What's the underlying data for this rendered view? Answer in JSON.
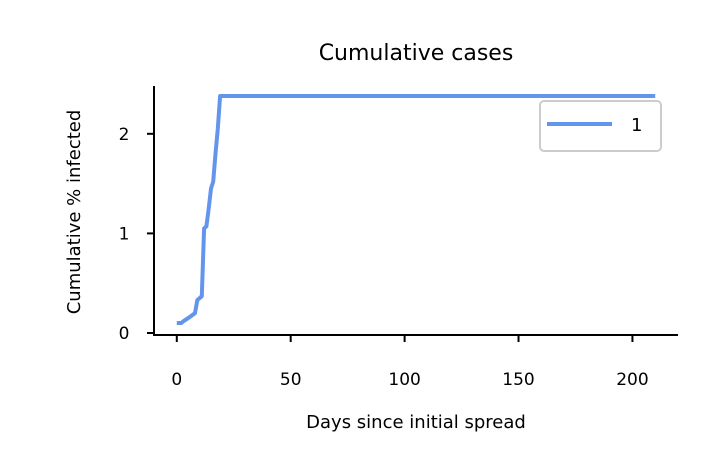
{
  "chart_data": {
    "type": "line",
    "title": "Cumulative cases",
    "xlabel": "Days since initial spread",
    "ylabel": "Cumulative % infected",
    "xlim": [
      -10,
      220
    ],
    "ylim": [
      -0.02,
      2.48
    ],
    "xticks": [
      0,
      50,
      100,
      150,
      200
    ],
    "yticks": [
      0,
      1,
      2
    ],
    "grid": false,
    "legend_position": "top-right",
    "series": [
      {
        "name": "1",
        "color": "#6495ED",
        "x": [
          0,
          2,
          3,
          5,
          8,
          9,
          10,
          11,
          12,
          13,
          14,
          15,
          16,
          17,
          18,
          19,
          20,
          210
        ],
        "y": [
          0.1,
          0.1,
          0.12,
          0.15,
          0.2,
          0.33,
          0.35,
          0.37,
          1.05,
          1.07,
          1.25,
          1.45,
          1.52,
          1.8,
          2.05,
          2.38,
          2.38,
          2.38
        ]
      }
    ]
  }
}
